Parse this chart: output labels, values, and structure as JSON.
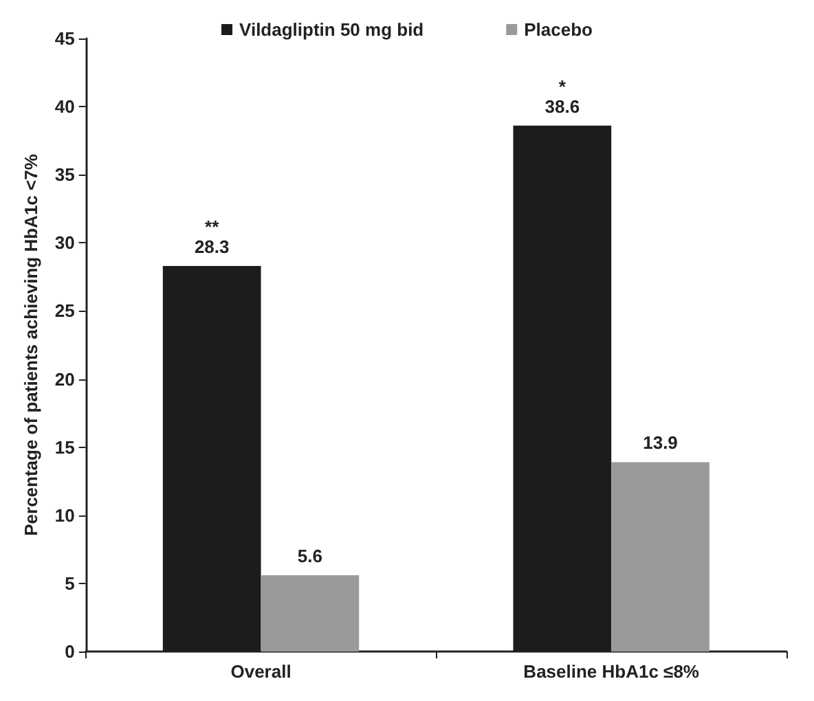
{
  "chart_data": {
    "type": "bar",
    "ylabel": "Percentage of patients achieving HbA1c <7%",
    "categories": [
      "Overall",
      "Baseline HbA1c ≤8%"
    ],
    "series": [
      {
        "name": "Vildagliptin 50 mg bid",
        "color": "#1c1c1c",
        "values": [
          28.3,
          38.6
        ]
      },
      {
        "name": "Placebo",
        "color": "#9a9a9a",
        "values": [
          5.6,
          13.9
        ]
      }
    ],
    "ylim": [
      0,
      45
    ],
    "yticks": [
      0,
      5,
      10,
      15,
      20,
      25,
      30,
      35,
      40,
      45
    ],
    "grid": false,
    "legend": "top",
    "data_labels": true,
    "annotations": [
      "**",
      "*"
    ]
  }
}
